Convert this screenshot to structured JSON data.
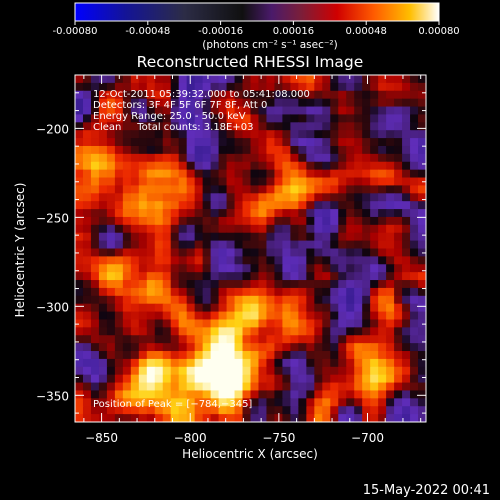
{
  "colorbar": {
    "ticks": [
      "-0.00080",
      "-0.00048",
      "-0.00016",
      "0.00016",
      "0.00048",
      "0.00080"
    ],
    "values": [
      -0.0008,
      -0.00048,
      -0.00016,
      0.00016,
      0.00048,
      0.0008
    ],
    "range": [
      -0.0008,
      0.0008
    ],
    "unit_label": "(photons cm⁻² s⁻¹ asec⁻²)"
  },
  "chart_data": {
    "type": "heatmap",
    "title": "Reconstructed RHESSI Image",
    "xlabel": "Heliocentric X (arcsec)",
    "ylabel": "Heliocentric Y (arcsec)",
    "xlim": [
      -865,
      -667
    ],
    "ylim": [
      -365,
      -170
    ],
    "x_ticks": [
      -850,
      -800,
      -750,
      -700
    ],
    "y_ticks": [
      -200,
      -250,
      -300,
      -350
    ],
    "x_tick_labels": [
      "−850",
      "−800",
      "−750",
      "−700"
    ],
    "y_tick_labels": [
      "−200",
      "−250",
      "−300",
      "−350"
    ],
    "peak": [
      -784,
      -345
    ],
    "annotations": [
      "12-Oct-2011 05:39:32.000 to 05:41:08.000",
      "Detectors: 3F 4F 5F 6F 7F 8F, Att 0",
      "Energy Range: 25.0 - 50.0 keV",
      "Clean     Total counts: 3.18E+03",
      "Position of Peak = [−784,−345]"
    ]
  },
  "footer": {
    "timestamp": "15-May-2022 00:41"
  },
  "colors": {
    "background": "#000000",
    "text": "#ffffff",
    "colormap": [
      "#0000ff",
      "#1010a0",
      "#2a2a4a",
      "#000000",
      "#3b1e6a",
      "#6a2aa8",
      "#8a1e1e",
      "#c00000",
      "#ff3c00",
      "#ff8c00",
      "#ffd200",
      "#ffffff"
    ]
  }
}
